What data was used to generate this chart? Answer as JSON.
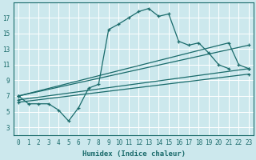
{
  "xlabel": "Humidex (Indice chaleur)",
  "bg_color": "#cce8ed",
  "line_color": "#1a6b6b",
  "grid_color": "#ffffff",
  "xlim": [
    -0.5,
    23.5
  ],
  "ylim": [
    2,
    19
  ],
  "xticks": [
    0,
    1,
    2,
    3,
    4,
    5,
    6,
    7,
    8,
    9,
    10,
    11,
    12,
    13,
    14,
    15,
    16,
    17,
    18,
    19,
    20,
    21,
    22,
    23
  ],
  "yticks": [
    3,
    5,
    7,
    9,
    11,
    13,
    15,
    17
  ],
  "line1_x": [
    0,
    1,
    2,
    3,
    4,
    5,
    6,
    7,
    8,
    9,
    10,
    11,
    12,
    13,
    14,
    15,
    16,
    17,
    18,
    19,
    20,
    21
  ],
  "line1_y": [
    7,
    6,
    6,
    6,
    5.2,
    3.8,
    5.5,
    8.0,
    8.5,
    15.5,
    16.2,
    17.0,
    17.8,
    18.2,
    17.2,
    17.5,
    14.0,
    13.5,
    13.8,
    12.5,
    11.0,
    10.5
  ],
  "line2_x": [
    0,
    21,
    22,
    23
  ],
  "line2_y": [
    7,
    13.8,
    11.0,
    10.5
  ],
  "line3_x": [
    0,
    23
  ],
  "line3_y": [
    6.5,
    10.5
  ],
  "line4_x": [
    0,
    23
  ],
  "line4_y": [
    7.0,
    13.5
  ],
  "line5_x": [
    0,
    23
  ],
  "line5_y": [
    6.2,
    9.8
  ]
}
